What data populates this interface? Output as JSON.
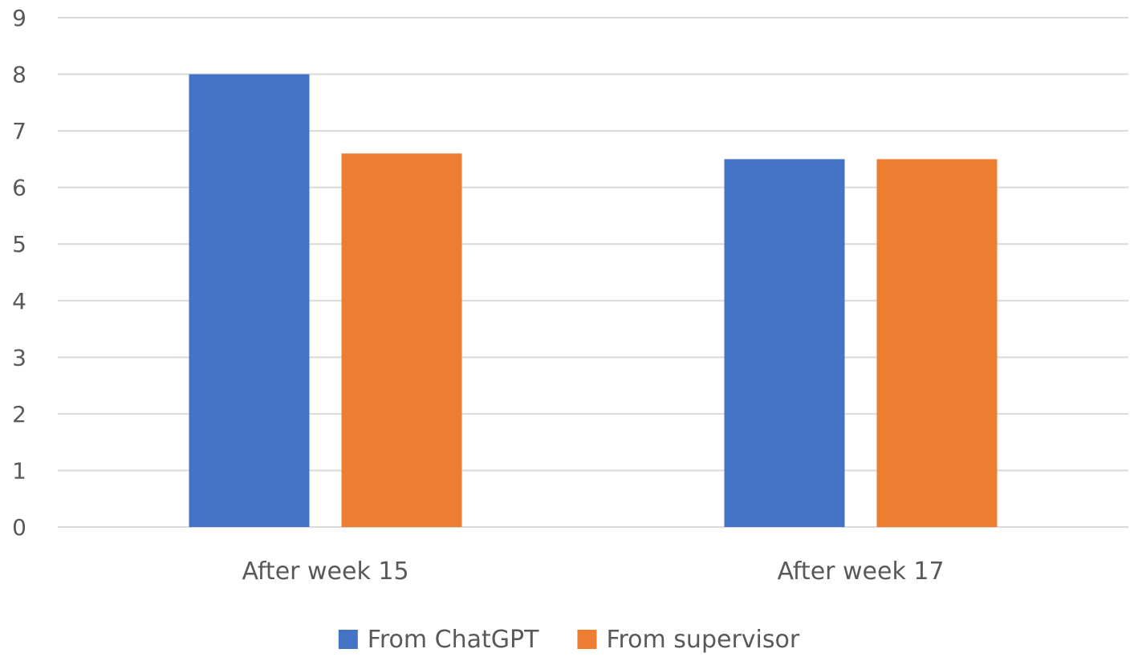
{
  "chart_data": {
    "type": "bar",
    "categories": [
      "After week 15",
      "After week 17"
    ],
    "series": [
      {
        "name": "From ChatGPT",
        "values": [
          8,
          6.5
        ],
        "color": "#4472c4"
      },
      {
        "name": "From supervisor",
        "values": [
          6.6,
          6.5
        ],
        "color": "#ed7d31"
      }
    ],
    "ylim": [
      0,
      9
    ],
    "yticks": [
      0,
      1,
      2,
      3,
      4,
      5,
      6,
      7,
      8,
      9
    ],
    "grid": true,
    "legend": "bottom"
  }
}
